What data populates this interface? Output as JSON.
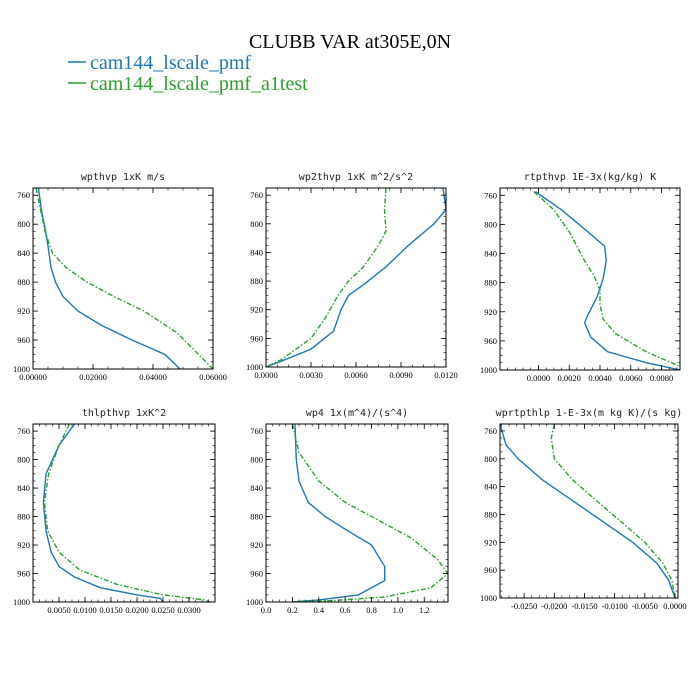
{
  "figure": {
    "title": "CLUBB VAR at305E,0N",
    "colors": {
      "series1": "#1f77b4",
      "series2": "#2ca02c"
    }
  },
  "legend": {
    "entries": [
      {
        "label": "cam144_lscale_pmf",
        "color": "#1f77b4",
        "style": "solid"
      },
      {
        "label": "cam144_lscale_pmf_a1test",
        "color": "#2ca02c",
        "style": "dashed"
      }
    ]
  },
  "chart_data": [
    {
      "type": "line",
      "title": "wpthvp  1xK m/s",
      "xlim": [
        0,
        0.06
      ],
      "ylim": [
        750,
        1000
      ],
      "y_inverted": true,
      "xticks": [
        0,
        0.02,
        0.04,
        0.06
      ],
      "xtick_labels": [
        "0.00000",
        "0.02000",
        "0.04000",
        "0.06000"
      ],
      "yticks": [
        760,
        800,
        840,
        880,
        920,
        960,
        1000
      ],
      "series": [
        {
          "name": "cam144_lscale_pmf",
          "x": [
            0.0018,
            0.0028,
            0.0042,
            0.005,
            0.006,
            0.0075,
            0.01,
            0.015,
            0.023,
            0.033,
            0.044,
            0.049
          ],
          "y": [
            750,
            780,
            810,
            830,
            860,
            880,
            900,
            920,
            940,
            960,
            980,
            1000
          ]
        },
        {
          "name": "cam144_lscale_pmf_a1test",
          "x": [
            0.001,
            0.0025,
            0.004,
            0.0065,
            0.011,
            0.018,
            0.027,
            0.037,
            0.048,
            0.06
          ],
          "y": [
            750,
            780,
            810,
            840,
            860,
            880,
            900,
            920,
            950,
            1000
          ]
        }
      ]
    },
    {
      "type": "line",
      "title": "wp2thvp  1xK m^2/s^2",
      "xlim": [
        0,
        0.012
      ],
      "ylim": [
        750,
        1000
      ],
      "y_inverted": true,
      "xticks": [
        0,
        0.003,
        0.006,
        0.009,
        0.012
      ],
      "xtick_labels": [
        "0.0000",
        "0.0030",
        "0.0060",
        "0.0090",
        "0.0120"
      ],
      "yticks": [
        760,
        800,
        840,
        880,
        920,
        960,
        1000
      ],
      "series": [
        {
          "name": "cam144_lscale_pmf",
          "x": [
            0.0118,
            0.012,
            0.0112,
            0.0095,
            0.008,
            0.0065,
            0.0055,
            0.005,
            0.0045,
            0.003,
            0.001,
            0.0
          ],
          "y": [
            750,
            780,
            800,
            830,
            860,
            885,
            900,
            920,
            950,
            975,
            992,
            1000
          ]
        },
        {
          "name": "cam144_lscale_pmf_a1test",
          "x": [
            0.008,
            0.0079,
            0.008,
            0.0075,
            0.0065,
            0.0055,
            0.0048,
            0.004,
            0.003,
            0.001,
            0.0
          ],
          "y": [
            750,
            780,
            810,
            830,
            860,
            880,
            900,
            930,
            960,
            990,
            1000
          ]
        }
      ]
    },
    {
      "type": "line",
      "title": "rtpthvp  1E-3x(kg/kg) K",
      "xlim": [
        -0.0025,
        0.0092
      ],
      "ylim": [
        750,
        1000
      ],
      "y_inverted": true,
      "xticks": [
        0,
        0.002,
        0.004,
        0.006,
        0.008
      ],
      "xtick_labels": [
        "0.0000",
        "0.0020",
        "0.0040",
        "0.0060",
        "0.0080"
      ],
      "yticks": [
        760,
        800,
        840,
        880,
        920,
        960,
        1000
      ],
      "series": [
        {
          "name": "cam144_lscale_pmf",
          "x": [
            -0.0002,
            0.0015,
            0.0032,
            0.0043,
            0.0044,
            0.0042,
            0.0038,
            0.0032,
            0.003,
            0.0034,
            0.0045,
            0.007,
            0.0092
          ],
          "y": [
            755,
            780,
            810,
            830,
            850,
            875,
            900,
            925,
            935,
            955,
            975,
            990,
            1000
          ]
        },
        {
          "name": "cam144_lscale_pmf_a1test",
          "x": [
            -0.0003,
            0.001,
            0.002,
            0.0025,
            0.003,
            0.0036,
            0.004,
            0.004,
            0.0042,
            0.005,
            0.007,
            0.0092
          ],
          "y": [
            755,
            780,
            810,
            830,
            850,
            870,
            890,
            910,
            930,
            950,
            975,
            995
          ]
        }
      ]
    },
    {
      "type": "line",
      "title": "thlpthvp  1xK^2",
      "xlim": [
        0,
        0.035
      ],
      "ylim": [
        750,
        1000
      ],
      "y_inverted": true,
      "xticks": [
        0.005,
        0.01,
        0.015,
        0.02,
        0.025,
        0.03
      ],
      "xtick_labels": [
        "0.0050",
        "0.0100",
        "0.0150",
        "0.0200",
        "0.0250",
        "0.0300"
      ],
      "yticks": [
        760,
        800,
        840,
        880,
        920,
        960,
        1000
      ],
      "series": [
        {
          "name": "cam144_lscale_pmf",
          "x": [
            0.008,
            0.005,
            0.0025,
            0.002,
            0.0025,
            0.0035,
            0.005,
            0.008,
            0.013,
            0.02,
            0.0245,
            0.025
          ],
          "y": [
            750,
            780,
            820,
            860,
            900,
            930,
            950,
            965,
            980,
            990,
            995,
            1000
          ]
        },
        {
          "name": "cam144_lscale_pmf_a1test",
          "x": [
            0.007,
            0.005,
            0.003,
            0.0022,
            0.0028,
            0.005,
            0.009,
            0.016,
            0.025,
            0.033,
            0.034
          ],
          "y": [
            750,
            780,
            820,
            860,
            900,
            930,
            955,
            975,
            990,
            997,
            1000
          ]
        }
      ]
    },
    {
      "type": "line",
      "title": "wp4  1x(m^4)/(s^4)",
      "xlim": [
        0,
        1.38
      ],
      "ylim": [
        750,
        1000
      ],
      "y_inverted": true,
      "xticks": [
        0,
        0.2,
        0.4,
        0.6,
        0.8,
        1.0,
        1.2
      ],
      "xtick_labels": [
        "0.0",
        "0.2",
        "0.4",
        "0.6",
        "0.8",
        "1.0",
        "1.2"
      ],
      "yticks": [
        760,
        800,
        840,
        880,
        920,
        960,
        1000
      ],
      "series": [
        {
          "name": "cam144_lscale_pmf",
          "x": [
            0.22,
            0.23,
            0.25,
            0.32,
            0.45,
            0.62,
            0.8,
            0.9,
            0.9,
            0.7,
            0.4,
            0.2
          ],
          "y": [
            750,
            800,
            830,
            860,
            880,
            900,
            920,
            950,
            970,
            990,
            997,
            1000
          ]
        },
        {
          "name": "cam144_lscale_pmf_a1test",
          "x": [
            0.2,
            0.25,
            0.4,
            0.6,
            0.85,
            1.1,
            1.3,
            1.38,
            1.25,
            0.9,
            0.5,
            0.2
          ],
          "y": [
            750,
            790,
            830,
            860,
            885,
            910,
            940,
            960,
            980,
            993,
            998,
            1000
          ]
        }
      ]
    },
    {
      "type": "line",
      "title": "wprtpthlp  1-E-3x(m kg K)/(s kg)",
      "xlim": [
        -0.029,
        0.0005
      ],
      "ylim": [
        750,
        1000
      ],
      "y_inverted": true,
      "xticks": [
        -0.025,
        -0.02,
        -0.015,
        -0.01,
        -0.005,
        0
      ],
      "xtick_labels": [
        "-0.0250",
        "-0.0200",
        "-0.0150",
        "-0.0100",
        "-0.0050",
        "0.0000"
      ],
      "yticks": [
        760,
        800,
        840,
        880,
        920,
        960,
        1000
      ],
      "series": [
        {
          "name": "cam144_lscale_pmf",
          "x": [
            -0.029,
            -0.028,
            -0.026,
            -0.022,
            -0.017,
            -0.012,
            -0.007,
            -0.003,
            -0.001,
            0.0
          ],
          "y": [
            750,
            780,
            800,
            830,
            860,
            890,
            920,
            950,
            975,
            1000
          ]
        },
        {
          "name": "cam144_lscale_pmf_a1test",
          "x": [
            -0.02,
            -0.0205,
            -0.02,
            -0.017,
            -0.013,
            -0.009,
            -0.005,
            -0.002,
            -0.0005,
            0.0
          ],
          "y": [
            750,
            770,
            800,
            830,
            860,
            890,
            920,
            950,
            975,
            1000
          ]
        }
      ]
    }
  ]
}
